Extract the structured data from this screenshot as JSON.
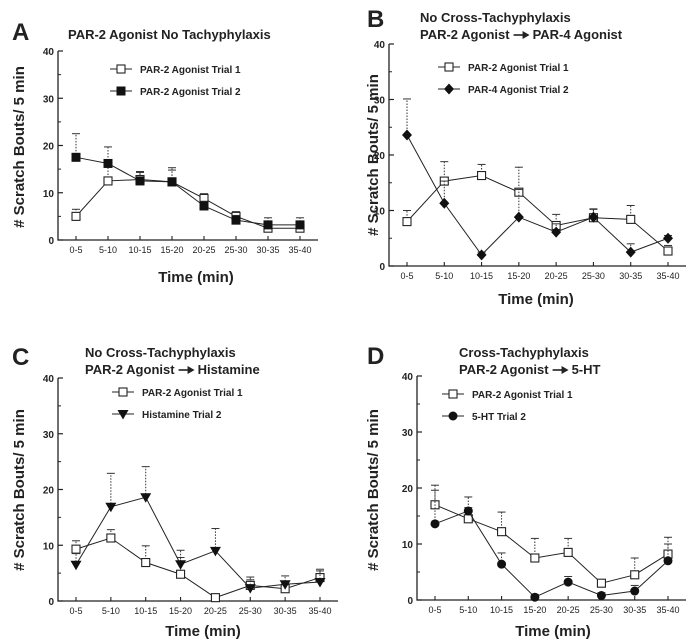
{
  "chart_data": [
    {
      "type": "line",
      "panel_letter": "A",
      "title_lines": [
        "PAR-2 Agonist No Tachyphylaxis"
      ],
      "xlabel": "Time (min)",
      "ylabel": "# Scratch Bouts/ 5 min",
      "categories": [
        "0-5",
        "5-10",
        "10-15",
        "15-20",
        "20-25",
        "25-30",
        "30-35",
        "35-40"
      ],
      "ylim": [
        0,
        40
      ],
      "yticks": [
        "0",
        "10",
        "20",
        "30",
        "40"
      ],
      "legend_position": "top-right",
      "series": [
        {
          "name": "PAR-2 Agonist Trial 1",
          "marker": "square-open",
          "values": [
            5,
            12.5,
            12.8,
            12.3,
            8.8,
            5,
            2.5,
            2.5
          ],
          "errors": [
            1.5,
            4,
            1.5,
            2.5,
            1,
            1,
            1.5,
            1
          ]
        },
        {
          "name": "PAR-2 Agonist Trial 2",
          "marker": "square-filled",
          "values": [
            17.5,
            16.2,
            12.5,
            12.3,
            7.2,
            4.2,
            3.2,
            3.2
          ],
          "errors": [
            5,
            3.5,
            2,
            3,
            1,
            1,
            1.5,
            1.5
          ]
        }
      ]
    },
    {
      "type": "line",
      "panel_letter": "B",
      "title_lines": [
        "No Cross-Tachyphylaxis",
        "PAR-2 Agonist",
        "PAR-4 Agonist"
      ],
      "xlabel": "Time (min)",
      "ylabel": "# Scratch Bouts/ 5 min",
      "categories": [
        "0-5",
        "5-10",
        "10-15",
        "15-20",
        "20-25",
        "25-30",
        "30-35",
        "35-40"
      ],
      "ylim": [
        0,
        40
      ],
      "yticks": [
        "0",
        "10",
        "20",
        "30",
        "40"
      ],
      "legend_position": "top-right",
      "series": [
        {
          "name": "PAR-2 Agonist Trial 1",
          "marker": "square-open",
          "values": [
            8,
            15.3,
            16.3,
            13.3,
            7.3,
            8.7,
            8.4,
            2.7
          ],
          "errors": [
            2,
            3.5,
            2,
            4.5,
            2,
            1.5,
            2.5,
            1
          ]
        },
        {
          "name": "PAR-4 Agonist Trial 2",
          "marker": "diamond-filled",
          "values": [
            23.6,
            11.3,
            2,
            8.8,
            6.1,
            8.8,
            2.5,
            5
          ],
          "errors": [
            6.5,
            4,
            0.5,
            5,
            1.5,
            1.5,
            1.5,
            0.5
          ]
        }
      ]
    },
    {
      "type": "line",
      "panel_letter": "C",
      "title_lines": [
        "No Cross-Tachyphylaxis",
        "PAR-2 Agonist",
        "Histamine"
      ],
      "xlabel": "Time (min)",
      "ylabel": "# Scratch Bouts/ 5 min",
      "categories": [
        "0-5",
        "5-10",
        "10-15",
        "15-20",
        "20-25",
        "25-30",
        "30-35",
        "35-40"
      ],
      "ylim": [
        0,
        40
      ],
      "yticks": [
        "0",
        "10",
        "20",
        "30",
        "40"
      ],
      "legend_position": "top-right",
      "series": [
        {
          "name": "PAR-2 Agonist Trial 1",
          "marker": "square-open",
          "values": [
            9.3,
            11.3,
            6.9,
            4.8,
            0.6,
            2.8,
            2.2,
            4.2
          ],
          "errors": [
            1.5,
            1.5,
            3,
            3,
            0.5,
            1,
            1,
            1.5
          ]
        },
        {
          "name": "Histamine Trial 2",
          "marker": "triangle-down-filled",
          "values": [
            6.5,
            16.9,
            18.6,
            6.6,
            9,
            2.3,
            3,
            3.4
          ],
          "errors": [
            2,
            6,
            5.5,
            2.5,
            4,
            2,
            1.5,
            2
          ]
        }
      ]
    },
    {
      "type": "line",
      "panel_letter": "D",
      "title_lines": [
        "Cross-Tachyphylaxis",
        "PAR-2 Agonist",
        "5-HT"
      ],
      "xlabel": "Time (min)",
      "ylabel": "# Scratch Bouts/ 5 min",
      "categories": [
        "0-5",
        "5-10",
        "10-15",
        "15-20",
        "20-25",
        "25-30",
        "30-35",
        "35-40"
      ],
      "ylim": [
        0,
        40
      ],
      "yticks": [
        "0",
        "10",
        "20",
        "30",
        "40"
      ],
      "legend_position": "top-right",
      "series": [
        {
          "name": "PAR-2 Agonist Trial 1",
          "marker": "square-open",
          "values": [
            17,
            14.5,
            12.2,
            7.5,
            8.5,
            3,
            4.5,
            8.2
          ],
          "errors": [
            3.5,
            2,
            3.5,
            3.5,
            2.5,
            0.5,
            3,
            3
          ]
        },
        {
          "name": "5-HT Trial 2",
          "marker": "circle-filled",
          "values": [
            13.6,
            15.9,
            6.4,
            0.5,
            3.2,
            0.8,
            1.6,
            7
          ],
          "errors": [
            6,
            2.5,
            2,
            0.5,
            1,
            0.5,
            1,
            3
          ]
        }
      ]
    }
  ]
}
